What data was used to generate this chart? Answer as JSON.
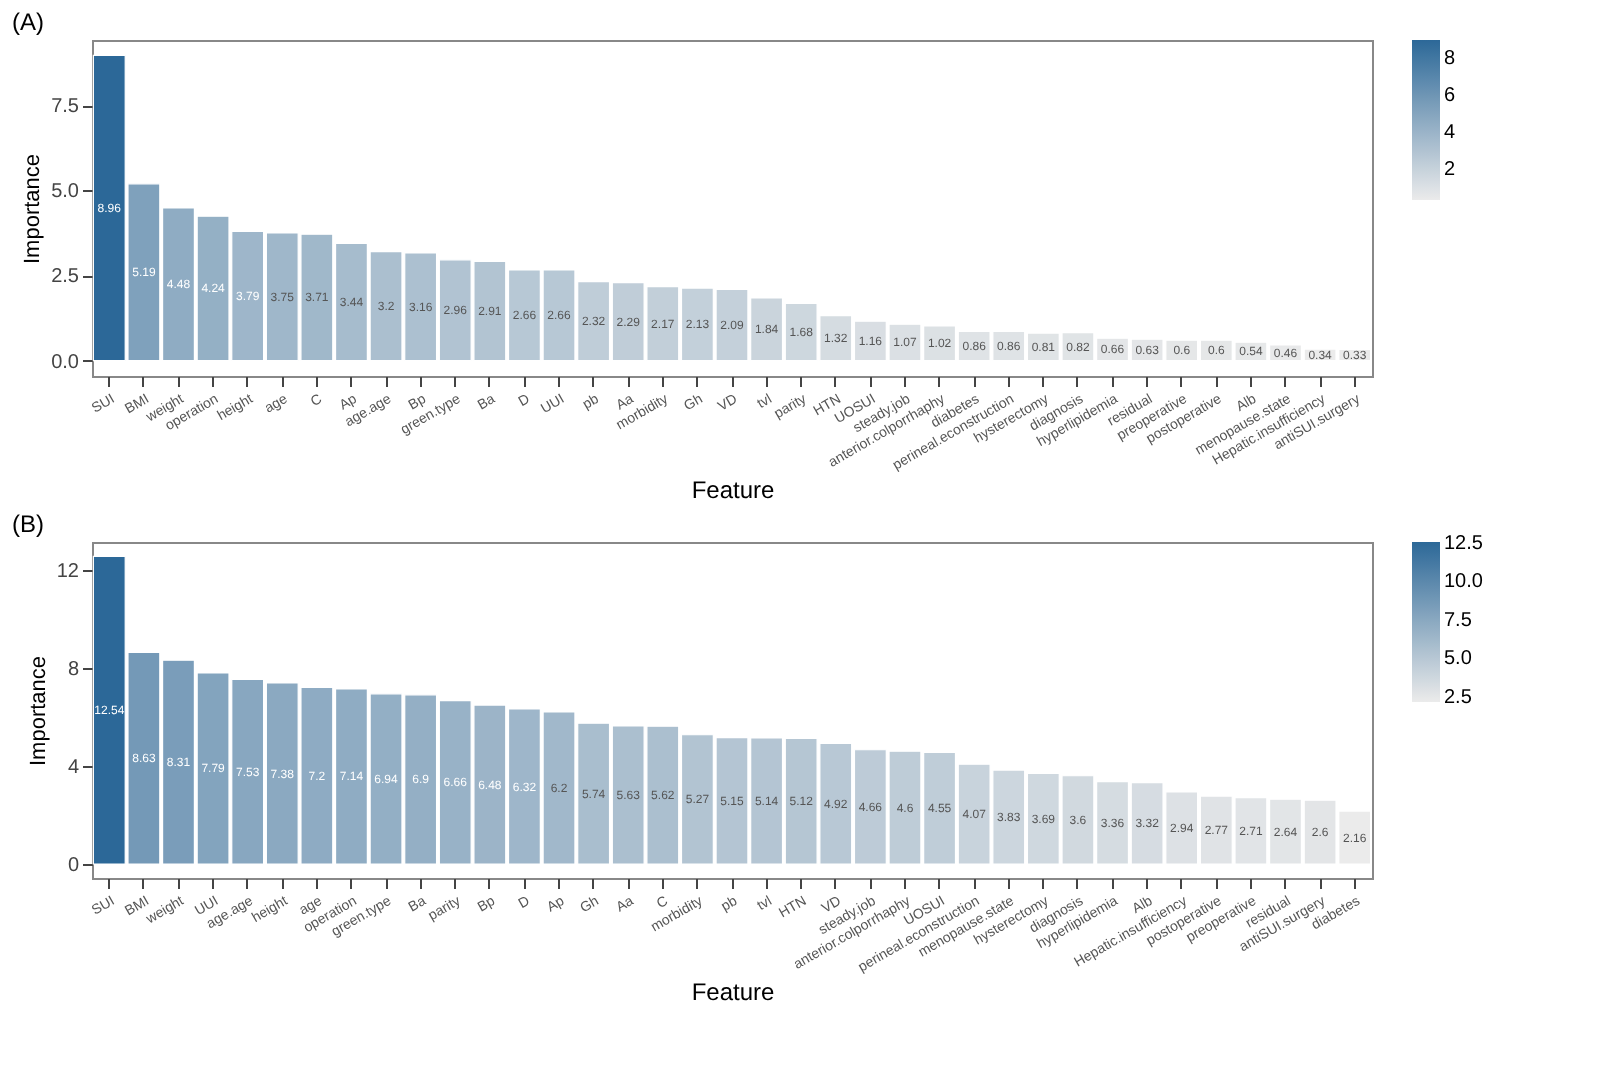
{
  "chart_data": [
    {
      "type": "bar",
      "title": "(A)",
      "xlabel": "Feature",
      "ylabel": "Importance",
      "categories": [
        "SUI",
        "BMI",
        "weight",
        "operation",
        "height",
        "age",
        "C",
        "Ap",
        "age.age",
        "Bp",
        "green.type",
        "Ba",
        "D",
        "UUI",
        "pb",
        "Aa",
        "morbidity",
        "Gh",
        "VD",
        "tvl",
        "parity",
        "HTN",
        "UOSUI",
        "steady.job",
        "anterior.colporrhaphy",
        "diabetes",
        "perineal.econstruction",
        "hysterectomy",
        "diagnosis",
        "hyperlipidemia",
        "residual",
        "preoperative",
        "postoperative",
        "Alb",
        "menopause.state",
        "Hepatic.insufficiency",
        "antiSUI.surgery"
      ],
      "series": [
        {
          "values": [
            8.96,
            5.19,
            4.48,
            4.24,
            3.79,
            3.75,
            3.71,
            3.44,
            3.2,
            3.16,
            2.96,
            2.91,
            2.66,
            2.66,
            2.32,
            2.29,
            2.17,
            2.13,
            2.09,
            1.84,
            1.68,
            1.32,
            1.16,
            1.07,
            1.02,
            0.86,
            0.86,
            0.81,
            0.82,
            0.66,
            0.63,
            0.6,
            0.6,
            0.54,
            0.46,
            0.34,
            0.33
          ]
        }
      ],
      "ylim": [
        -0.45,
        9.41
      ],
      "yticks": [
        {
          "value": 0,
          "label": "0.0"
        },
        {
          "value": 2.5,
          "label": "2.5"
        },
        {
          "value": 5,
          "label": "5.0"
        },
        {
          "value": 7.5,
          "label": "7.5"
        }
      ],
      "clim": [
        0.33,
        8.96
      ],
      "cticks": [
        2,
        4,
        6,
        8
      ],
      "data_labels": true,
      "grid": false
    },
    {
      "type": "bar",
      "title": "(B)",
      "xlabel": "Feature",
      "ylabel": "Importance",
      "categories": [
        "SUI",
        "BMI",
        "weight",
        "UUI",
        "age.age",
        "height",
        "age",
        "operation",
        "green.type",
        "Ba",
        "parity",
        "Bp",
        "D",
        "Ap",
        "Gh",
        "Aa",
        "C",
        "morbidity",
        "pb",
        "tvl",
        "HTN",
        "VD",
        "steady.job",
        "anterior.colporrhaphy",
        "UOSUI",
        "perineal.econstruction",
        "menopause.state",
        "hysterectomy",
        "diagnosis",
        "hyperlipidemia",
        "Alb",
        "Hepatic.insufficiency",
        "postoperative",
        "preoperative",
        "residual",
        "antiSUI.surgery",
        "diabetes"
      ],
      "series": [
        {
          "values": [
            12.54,
            8.63,
            8.31,
            7.79,
            7.53,
            7.38,
            7.2,
            7.14,
            6.94,
            6.9,
            6.66,
            6.48,
            6.32,
            6.2,
            5.74,
            5.63,
            5.62,
            5.27,
            5.15,
            5.14,
            5.12,
            4.92,
            4.66,
            4.6,
            4.55,
            4.07,
            3.83,
            3.69,
            3.6,
            3.36,
            3.32,
            2.94,
            2.77,
            2.71,
            2.64,
            2.6,
            2.16
          ]
        }
      ],
      "ylim": [
        -0.57,
        13.13
      ],
      "yticks": [
        0,
        4,
        8,
        12
      ],
      "clim": [
        2.16,
        12.54
      ],
      "cticks": [
        {
          "value": 2.5,
          "label": "2.5"
        },
        {
          "value": 5,
          "label": "5.0"
        },
        {
          "value": 7.5,
          "label": "7.5"
        },
        {
          "value": 10,
          "label": "10.0"
        },
        {
          "value": 12.5,
          "label": "12.5"
        }
      ],
      "data_labels": true,
      "grid": false
    }
  ]
}
